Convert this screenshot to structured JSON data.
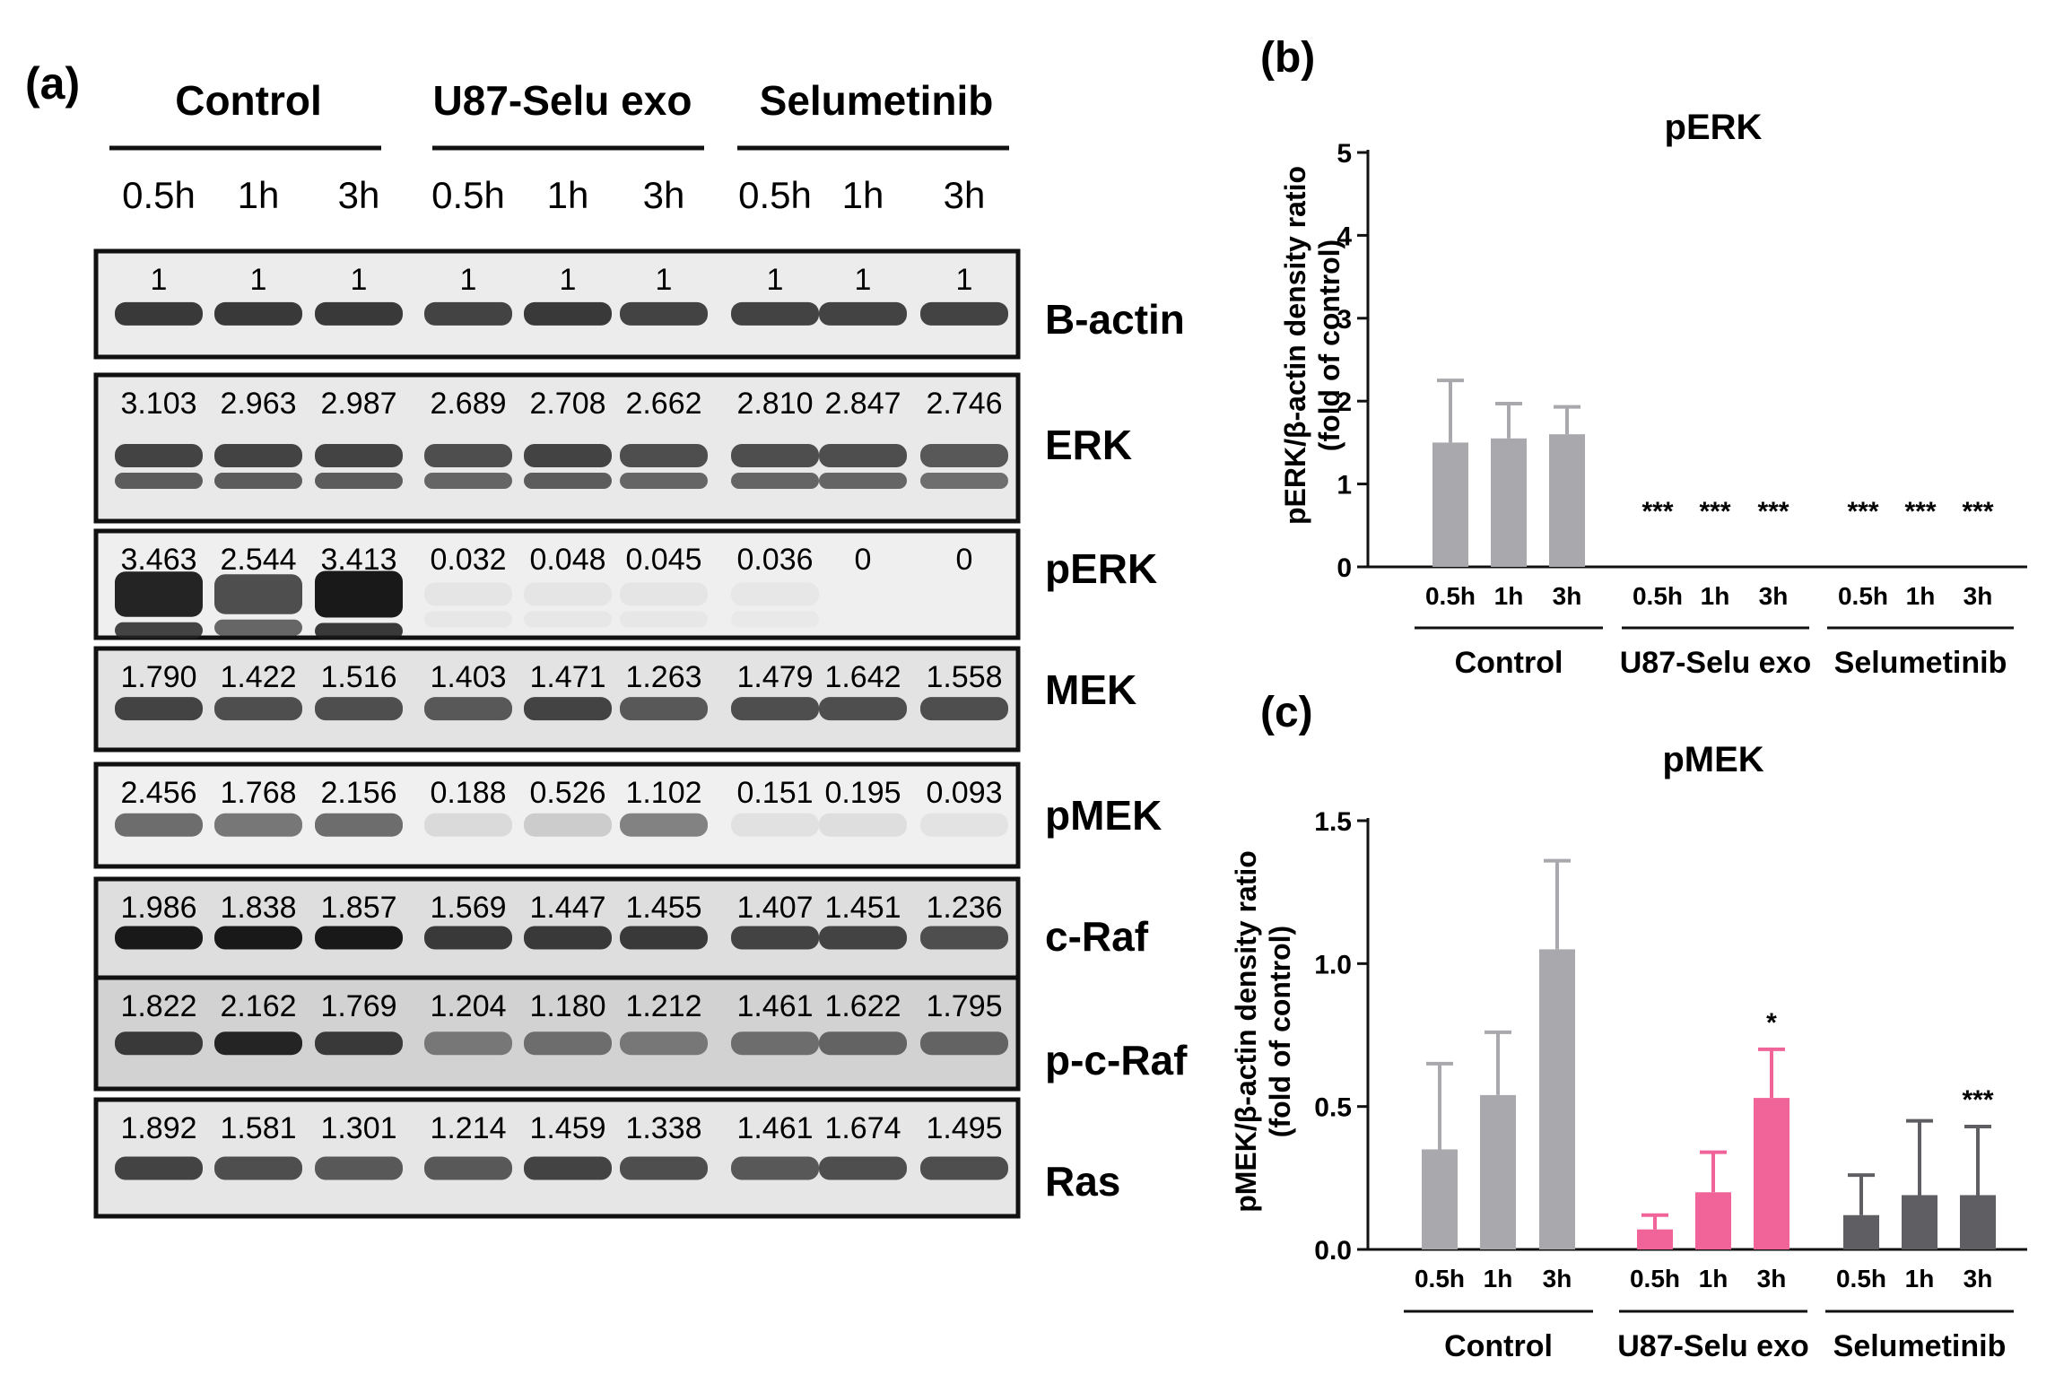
{
  "panels": {
    "a": {
      "label": "(a)",
      "groups": [
        "Control",
        "U87-Selu exo",
        "Selumetinib"
      ],
      "timepoints": [
        "0.5h",
        "1h",
        "3h",
        "0.5h",
        "1h",
        "3h",
        "0.5h",
        "1h",
        "3h"
      ],
      "blots": [
        {
          "name": "B-actin",
          "values": [
            "1",
            "1",
            "1",
            "1",
            "1",
            "1",
            "1",
            "1",
            "1"
          ],
          "band_intensity": [
            0.85,
            0.85,
            0.85,
            0.8,
            0.85,
            0.8,
            0.8,
            0.8,
            0.8
          ],
          "double_band": false
        },
        {
          "name": "ERK",
          "values": [
            "3.103",
            "2.963",
            "2.987",
            "2.689",
            "2.708",
            "2.662",
            "2.810",
            "2.847",
            "2.746"
          ],
          "band_intensity": [
            0.8,
            0.8,
            0.8,
            0.75,
            0.8,
            0.75,
            0.75,
            0.75,
            0.7
          ],
          "double_band": true
        },
        {
          "name": "pERK",
          "values": [
            "3.463",
            "2.544",
            "3.413",
            "0.032",
            "0.048",
            "0.045",
            "0.036",
            "0",
            "0"
          ],
          "band_intensity": [
            0.95,
            0.75,
            1.0,
            0.03,
            0.03,
            0.03,
            0.02,
            0.0,
            0.0
          ],
          "double_band": true
        },
        {
          "name": "MEK",
          "values": [
            "1.790",
            "1.422",
            "1.516",
            "1.403",
            "1.471",
            "1.263",
            "1.479",
            "1.642",
            "1.558"
          ],
          "band_intensity": [
            0.8,
            0.75,
            0.75,
            0.7,
            0.8,
            0.7,
            0.75,
            0.75,
            0.75
          ],
          "double_band": false
        },
        {
          "name": "pMEK",
          "values": [
            "2.456",
            "1.768",
            "2.156",
            "0.188",
            "0.526",
            "1.102",
            "0.151",
            "0.195",
            "0.093"
          ],
          "band_intensity": [
            0.6,
            0.55,
            0.6,
            0.08,
            0.15,
            0.5,
            0.05,
            0.06,
            0.04
          ],
          "double_band": false
        },
        {
          "name": "c-Raf",
          "values": [
            "1.986",
            "1.838",
            "1.857",
            "1.569",
            "1.447",
            "1.455",
            "1.407",
            "1.451",
            "1.236"
          ],
          "band_intensity": [
            1.0,
            1.0,
            1.0,
            0.85,
            0.85,
            0.85,
            0.8,
            0.8,
            0.75
          ],
          "double_band": false
        },
        {
          "name": "p-c-Raf",
          "values": [
            "1.822",
            "2.162",
            "1.769",
            "1.204",
            "1.180",
            "1.212",
            "1.461",
            "1.622",
            "1.795"
          ],
          "band_intensity": [
            0.85,
            0.95,
            0.85,
            0.55,
            0.6,
            0.55,
            0.6,
            0.65,
            0.65
          ],
          "double_band": false
        },
        {
          "name": "Ras",
          "values": [
            "1.892",
            "1.581",
            "1.301",
            "1.214",
            "1.459",
            "1.338",
            "1.461",
            "1.674",
            "1.495"
          ],
          "band_intensity": [
            0.8,
            0.75,
            0.7,
            0.7,
            0.8,
            0.75,
            0.7,
            0.75,
            0.75
          ],
          "double_band": false
        }
      ]
    },
    "b": {
      "label": "(b)"
    },
    "c": {
      "label": "(c)"
    }
  },
  "chart_data": [
    {
      "type": "bar",
      "panel": "b",
      "title": "pERK",
      "ylabel_line1": "pERK/β-actin density ratio",
      "ylabel_line2": "(fold of control)",
      "ylim": [
        0,
        5
      ],
      "yticks": [
        "0",
        "1",
        "2",
        "3",
        "4",
        "5"
      ],
      "groups": [
        "Control",
        "U87-Selu exo",
        "Selumetinib"
      ],
      "categories": [
        "0.5h",
        "1h",
        "3h",
        "0.5h",
        "1h",
        "3h",
        "0.5h",
        "1h",
        "3h"
      ],
      "values": [
        1.5,
        1.55,
        1.6,
        0,
        0,
        0,
        0,
        0,
        0
      ],
      "errors": [
        0.75,
        0.42,
        0.33,
        0,
        0,
        0,
        0,
        0,
        0
      ],
      "significance": [
        "",
        "",
        "",
        "***",
        "***",
        "***",
        "***",
        "***",
        "***"
      ],
      "colors": [
        "#a9a9ad",
        "#a9a9ad",
        "#a9a9ad",
        "#a9a9ad",
        "#a9a9ad",
        "#a9a9ad",
        "#a9a9ad",
        "#a9a9ad",
        "#a9a9ad"
      ]
    },
    {
      "type": "bar",
      "panel": "c",
      "title": "pMEK",
      "ylabel_line1": "pMEK/β-actin density ratio",
      "ylabel_line2": "(fold of control)",
      "ylim": [
        0,
        1.5
      ],
      "yticks": [
        "0.0",
        "0.5",
        "1.0",
        "1.5"
      ],
      "groups": [
        "Control",
        "U87-Selu exo",
        "Selumetinib"
      ],
      "categories": [
        "0.5h",
        "1h",
        "3h",
        "0.5h",
        "1h",
        "3h",
        "0.5h",
        "1h",
        "3h"
      ],
      "values": [
        0.35,
        0.54,
        1.05,
        0.07,
        0.2,
        0.53,
        0.12,
        0.19,
        0.19
      ],
      "errors": [
        0.3,
        0.22,
        0.31,
        0.05,
        0.14,
        0.17,
        0.14,
        0.26,
        0.24
      ],
      "significance": [
        "",
        "",
        "",
        "",
        "",
        "*",
        "",
        "",
        "***"
      ],
      "colors": [
        "#a9a9ad",
        "#a9a9ad",
        "#a9a9ad",
        "#f0649a",
        "#f0649a",
        "#f0649a",
        "#5f5f63",
        "#5f5f63",
        "#5f5f63"
      ]
    }
  ]
}
